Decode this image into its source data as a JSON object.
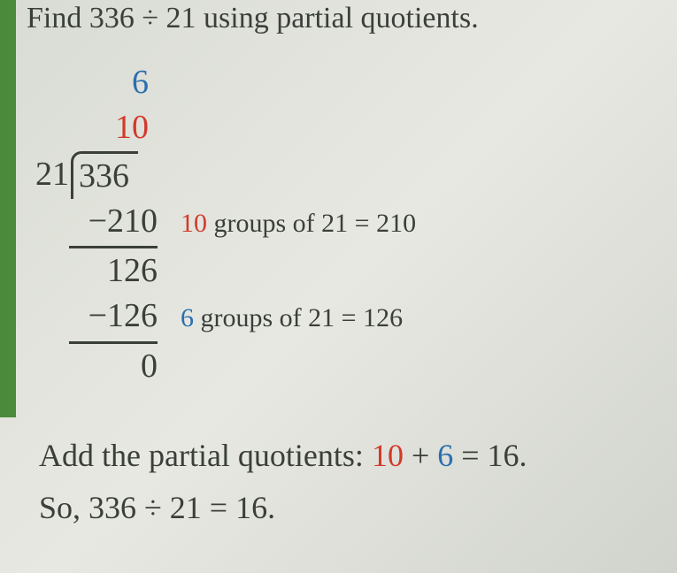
{
  "title": "Find 336 ÷ 21 using partial quotients.",
  "division": {
    "divisor": "21",
    "dividend": "336",
    "quotients": {
      "q1": "10",
      "q2": "6"
    },
    "steps": [
      {
        "sub": "−210",
        "remain": "126",
        "annot_count": "10",
        "annot_rest": " groups of 21 = 210"
      },
      {
        "sub": "−126",
        "remain": "0",
        "annot_count": "6",
        "annot_rest": " groups of 21 = 126"
      }
    ]
  },
  "summary": {
    "prefix": "Add the partial quotients: ",
    "pq1": "10",
    "plus": " + ",
    "pq2": "6",
    "eq": " = 16.",
    "conclusion": "So, 336 ÷ 21 = 16."
  },
  "colors": {
    "red": "#d23a2a",
    "blue": "#2a6fb0",
    "text": "#3a3f3a",
    "green_edge": "#4a8a3a",
    "bg": "#e0e2da"
  },
  "typography": {
    "title_fontsize_pt": 26,
    "body_fontsize_pt": 28,
    "annot_fontsize_pt": 22,
    "font_family": "serif"
  }
}
